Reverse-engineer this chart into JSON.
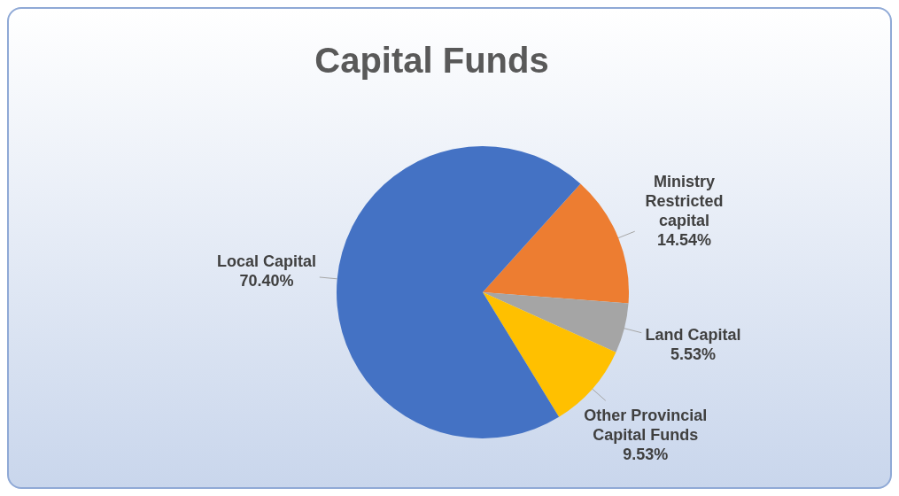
{
  "chart_data": {
    "type": "pie",
    "title": "Capital Funds",
    "categories": [
      "Ministry Restricted capital",
      "Land Capital",
      "Other Provincial Capital Funds",
      "Local Capital"
    ],
    "values": [
      14.54,
      5.53,
      9.53,
      70.4
    ],
    "colors": [
      "#ed7d31",
      "#a5a5a5",
      "#ffc000",
      "#4472c4"
    ],
    "value_labels": [
      "14.54%",
      "5.53%",
      "9.53%",
      "70.40%"
    ]
  }
}
